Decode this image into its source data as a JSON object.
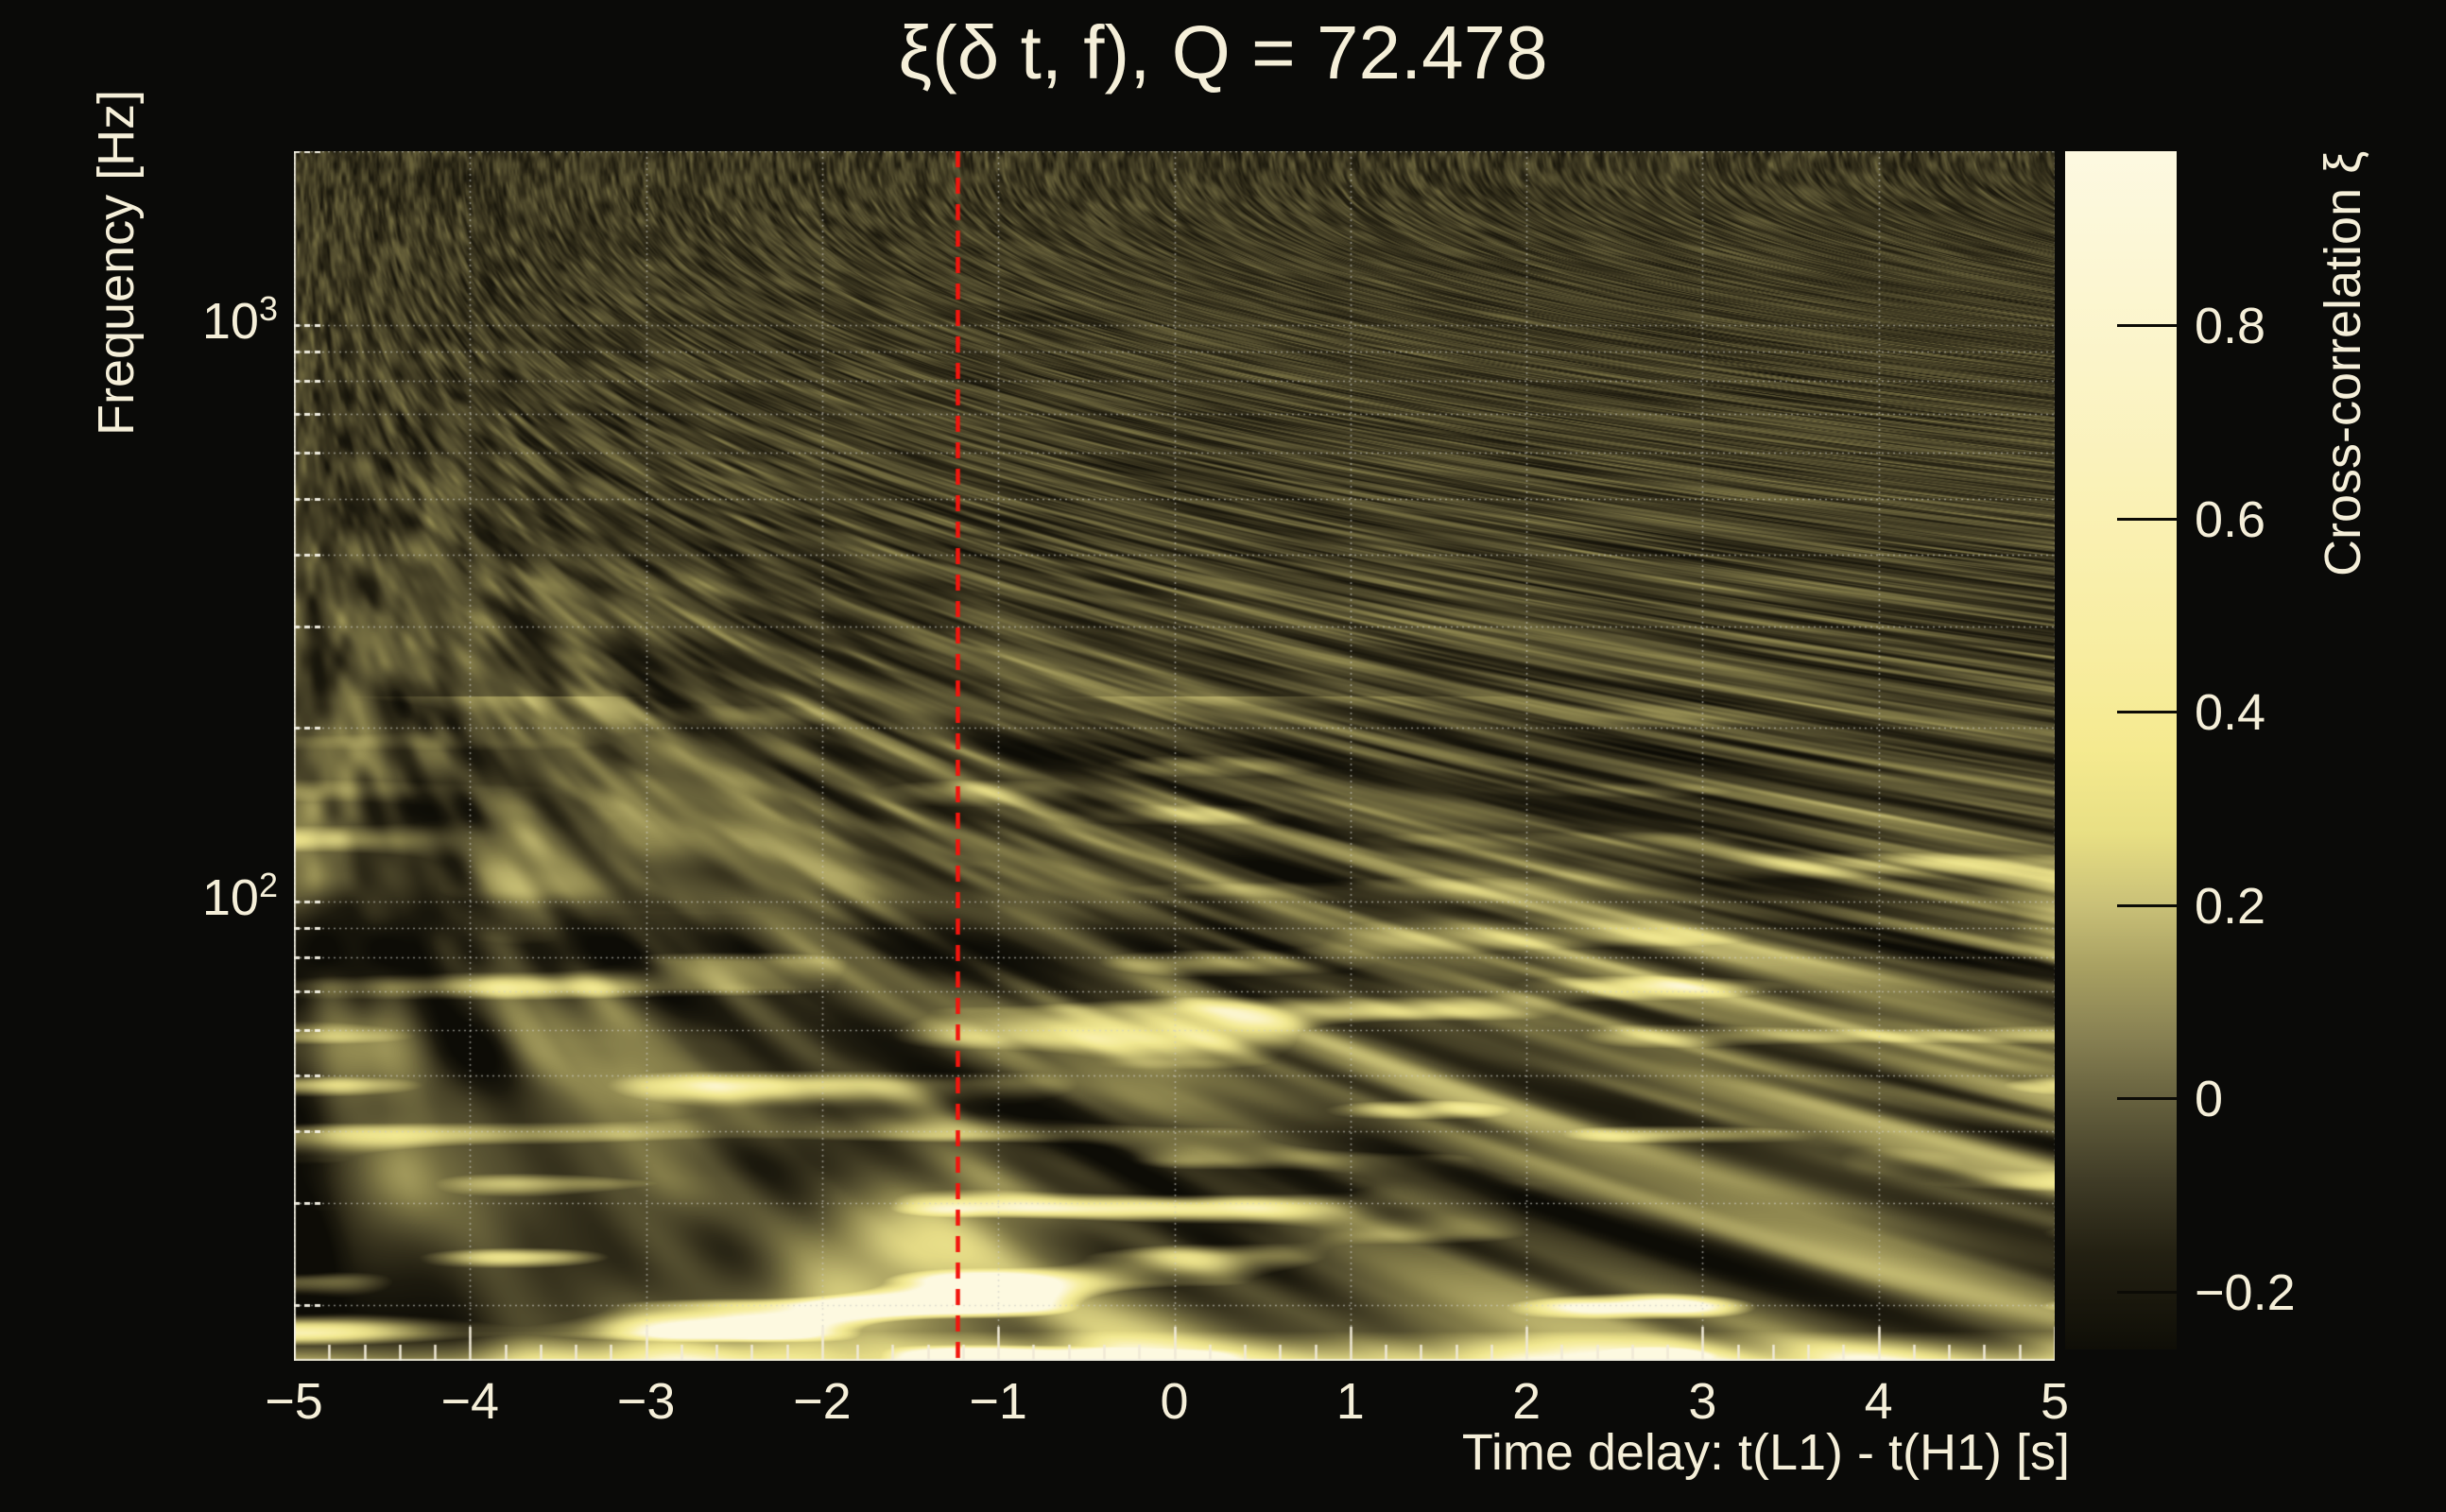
{
  "page": {
    "background": "#0a0a08",
    "text_color": "#f5efd9"
  },
  "chart_data": {
    "type": "heatmap",
    "title": "ξ(δ t, f), Q = 72.478",
    "xlabel": "Time delay: t(L1) - t(H1) [s]",
    "ylabel": "Frequency [Hz]",
    "x_range": [
      -5,
      5
    ],
    "x_major_ticks": [
      -5,
      -4,
      -3,
      -2,
      -1,
      0,
      1,
      2,
      3,
      4,
      5
    ],
    "x_tick_labels": [
      "−5",
      "−4",
      "−3",
      "−2",
      "−1",
      "0",
      "1",
      "2",
      "3",
      "4",
      "5"
    ],
    "x_minor_tick_step": 0.2,
    "y_scale": "log",
    "y_range_hz": [
      16,
      2000
    ],
    "y_major_ticks": [
      {
        "base": "10",
        "exp": "2",
        "hz": 100
      },
      {
        "base": "10",
        "exp": "3",
        "hz": 1000
      }
    ],
    "grid_freqs_hz": [
      20,
      30,
      40,
      50,
      60,
      70,
      80,
      90,
      100,
      200,
      300,
      400,
      500,
      600,
      700,
      800,
      900,
      1000,
      2000
    ],
    "grid_color": "rgba(205,205,198,0.6)",
    "axis_tick_color": "#efe9d6",
    "marker_line": {
      "x_seconds": -1.23,
      "color": "#f2150e",
      "style": "dashed"
    },
    "colorbar": {
      "label": "Cross-correlation ξ",
      "value_range": [
        -0.26,
        0.98
      ],
      "tick_values": [
        0.8,
        0.6,
        0.4,
        0.2,
        0,
        -0.2
      ],
      "tick_labels": [
        "0.8",
        "0.6",
        "0.4",
        "0.2",
        "0",
        "−0.2"
      ],
      "gradient_top_to_bottom": [
        {
          "pct": 0,
          "color": "#fdf9e1"
        },
        {
          "pct": 8,
          "color": "#fcf7d6"
        },
        {
          "pct": 18,
          "color": "#fbf4c8"
        },
        {
          "pct": 30,
          "color": "#faf1b4"
        },
        {
          "pct": 42,
          "color": "#f8eda0"
        },
        {
          "pct": 50,
          "color": "#f5ea8f"
        },
        {
          "pct": 57,
          "color": "#e8df83"
        },
        {
          "pct": 63,
          "color": "#c9c077"
        },
        {
          "pct": 68,
          "color": "#a9a162"
        },
        {
          "pct": 74,
          "color": "#878052"
        },
        {
          "pct": 80,
          "color": "#615c3b"
        },
        {
          "pct": 86,
          "color": "#3f3b26"
        },
        {
          "pct": 92,
          "color": "#232012"
        },
        {
          "pct": 100,
          "color": "#0f0e07"
        }
      ]
    },
    "heatmap_palette_dark_to_bright": [
      {
        "t": 0.0,
        "color": "#0d0c06"
      },
      {
        "t": 0.1,
        "color": "#1e1b0f"
      },
      {
        "t": 0.2,
        "color": "#3b3620"
      },
      {
        "t": 0.3,
        "color": "#5a5433"
      },
      {
        "t": 0.38,
        "color": "#756e41"
      },
      {
        "t": 0.46,
        "color": "#938b52"
      },
      {
        "t": 0.54,
        "color": "#b0a765"
      },
      {
        "t": 0.62,
        "color": "#ccc377"
      },
      {
        "t": 0.7,
        "color": "#e4da85"
      },
      {
        "t": 0.78,
        "color": "#f2e992"
      },
      {
        "t": 0.86,
        "color": "#f8efa6"
      },
      {
        "t": 0.93,
        "color": "#fbf4c4"
      },
      {
        "t": 1.0,
        "color": "#fdf9e0"
      }
    ]
  }
}
